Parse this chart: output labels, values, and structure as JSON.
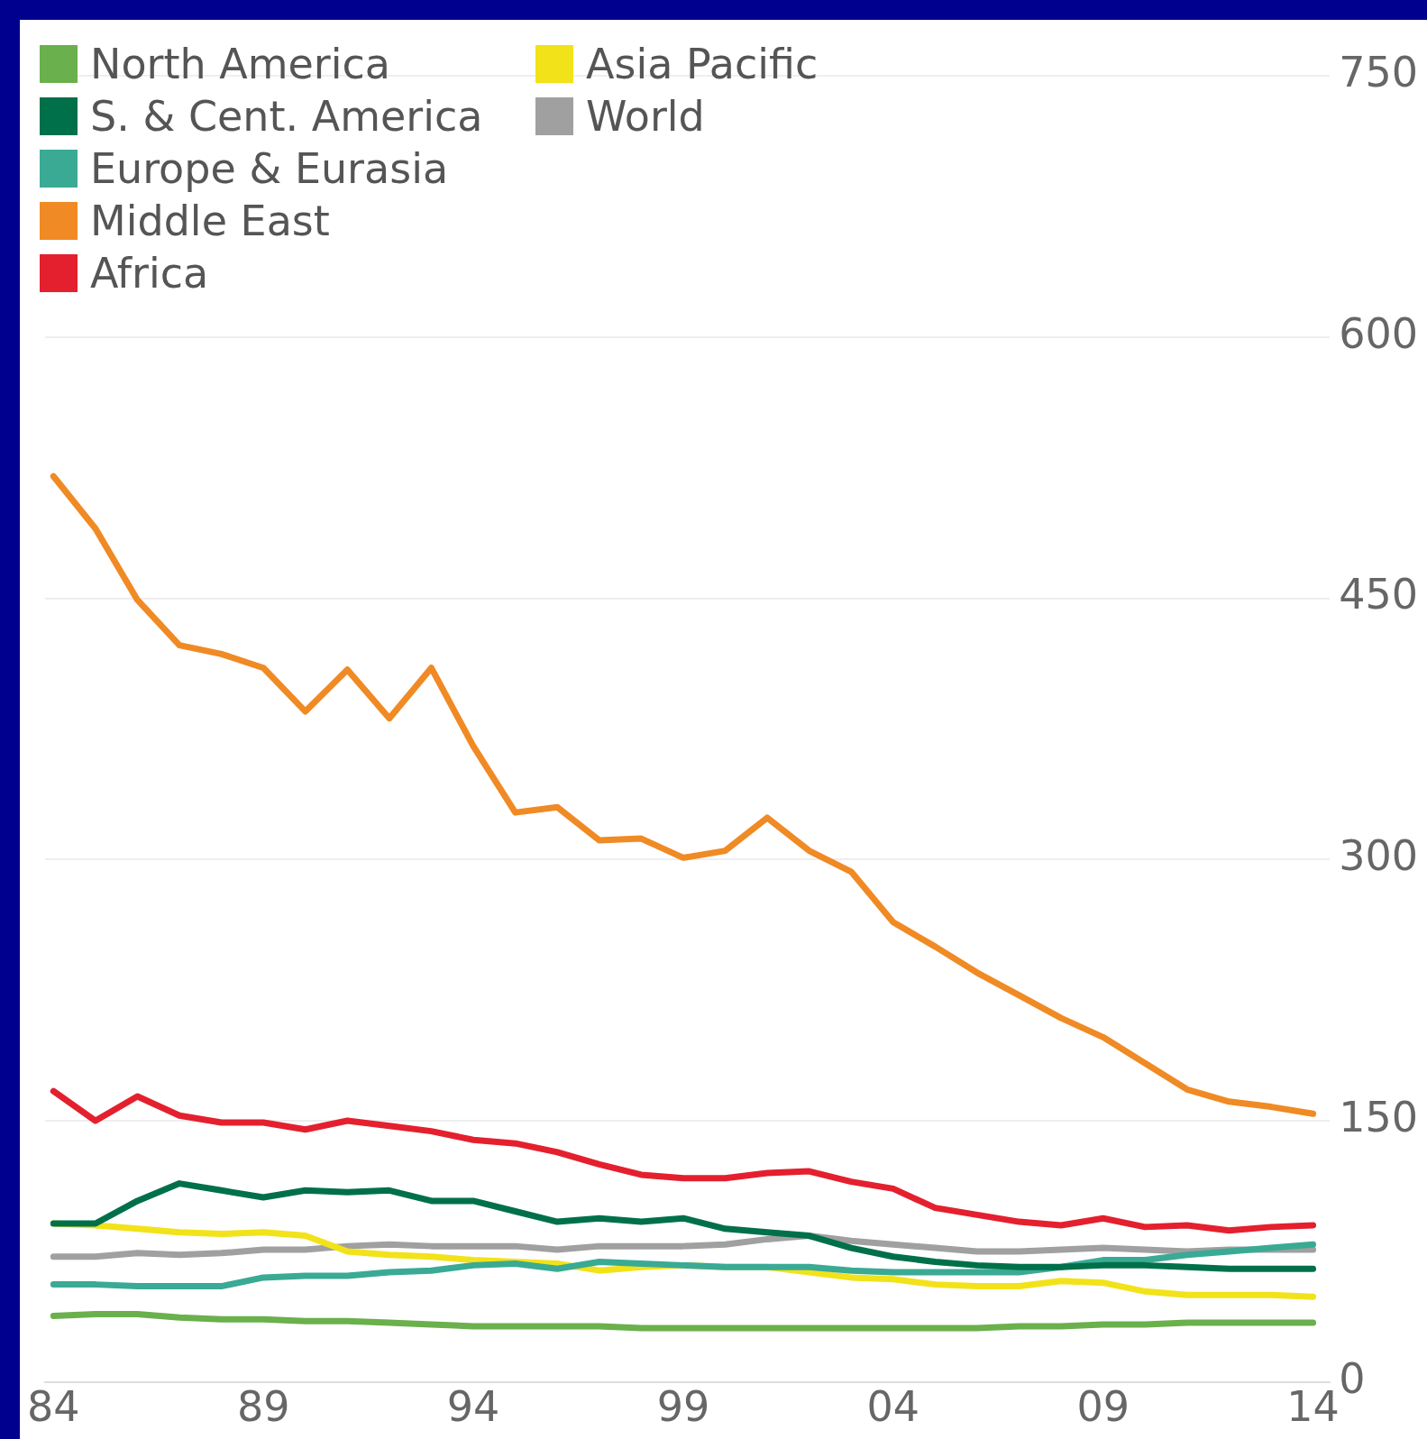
{
  "chart_data": {
    "type": "line",
    "x": [
      1984,
      1985,
      1986,
      1987,
      1988,
      1989,
      1990,
      1991,
      1992,
      1993,
      1994,
      1995,
      1996,
      1997,
      1998,
      1999,
      2000,
      2001,
      2002,
      2003,
      2004,
      2005,
      2006,
      2007,
      2008,
      2009,
      2010,
      2011,
      2012,
      2013,
      2014
    ],
    "xlim": [
      1983.8,
      2014.4
    ],
    "xticks": [
      {
        "value": 1984,
        "label": "84"
      },
      {
        "value": 1989,
        "label": "89"
      },
      {
        "value": 1994,
        "label": "94"
      },
      {
        "value": 1999,
        "label": "99"
      },
      {
        "value": 2004,
        "label": "04"
      },
      {
        "value": 2009,
        "label": "09"
      },
      {
        "value": 2014,
        "label": "14"
      }
    ],
    "ylim": [
      0,
      750
    ],
    "yticks": [
      0,
      150,
      300,
      450,
      600,
      750
    ],
    "grid": "y",
    "legend": "top left",
    "marker": "none",
    "line_style": "solid",
    "series": [
      {
        "name": "North America",
        "color": "#6ab04c",
        "values": [
          38,
          39,
          39,
          37,
          36,
          36,
          35,
          35,
          34,
          33,
          32,
          32,
          32,
          32,
          31,
          31,
          31,
          31,
          31,
          31,
          31,
          31,
          31,
          32,
          32,
          33,
          33,
          34,
          34,
          34,
          34
        ]
      },
      {
        "name": "S. & Cent. America",
        "color": "#00704a",
        "values": [
          91,
          91,
          104,
          114,
          110,
          106,
          110,
          109,
          110,
          104,
          104,
          98,
          92,
          94,
          92,
          94,
          88,
          86,
          84,
          77,
          72,
          69,
          67,
          66,
          66,
          67,
          67,
          66,
          65,
          65,
          65
        ]
      },
      {
        "name": "Europe & Eurasia",
        "color": "#3aaa94",
        "values": [
          56,
          56,
          55,
          55,
          55,
          60,
          61,
          61,
          63,
          64,
          67,
          68,
          65,
          69,
          68,
          67,
          66,
          66,
          66,
          64,
          63,
          63,
          63,
          63,
          66,
          70,
          70,
          73,
          75,
          77,
          79
        ]
      },
      {
        "name": "Middle East",
        "color": "#f08a24",
        "values": [
          520,
          490,
          449,
          423,
          418,
          410,
          385,
          409,
          381,
          410,
          365,
          327,
          330,
          311,
          312,
          301,
          305,
          324,
          305,
          293,
          264,
          250,
          235,
          222,
          209,
          198,
          183,
          168,
          161,
          158,
          154
        ]
      },
      {
        "name": "Africa",
        "color": "#e4202e",
        "values": [
          167,
          150,
          164,
          153,
          149,
          149,
          145,
          150,
          147,
          144,
          139,
          137,
          132,
          125,
          119,
          117,
          117,
          120,
          121,
          115,
          111,
          100,
          96,
          92,
          90,
          94,
          89,
          90,
          87,
          89,
          90
        ]
      },
      {
        "name": "Asia Pacific",
        "color": "#f2e21a",
        "values": [
          91,
          90,
          88,
          86,
          85,
          86,
          84,
          75,
          73,
          72,
          70,
          69,
          68,
          64,
          66,
          67,
          66,
          66,
          63,
          60,
          59,
          56,
          55,
          55,
          58,
          57,
          52,
          50,
          50,
          50,
          49
        ]
      },
      {
        "name": "World",
        "color": "#a0a0a0",
        "values": [
          72,
          72,
          74,
          73,
          74,
          76,
          76,
          78,
          79,
          78,
          78,
          78,
          76,
          78,
          78,
          78,
          79,
          82,
          84,
          81,
          79,
          77,
          75,
          75,
          76,
          77,
          76,
          75,
          76,
          76,
          76
        ]
      }
    ]
  }
}
